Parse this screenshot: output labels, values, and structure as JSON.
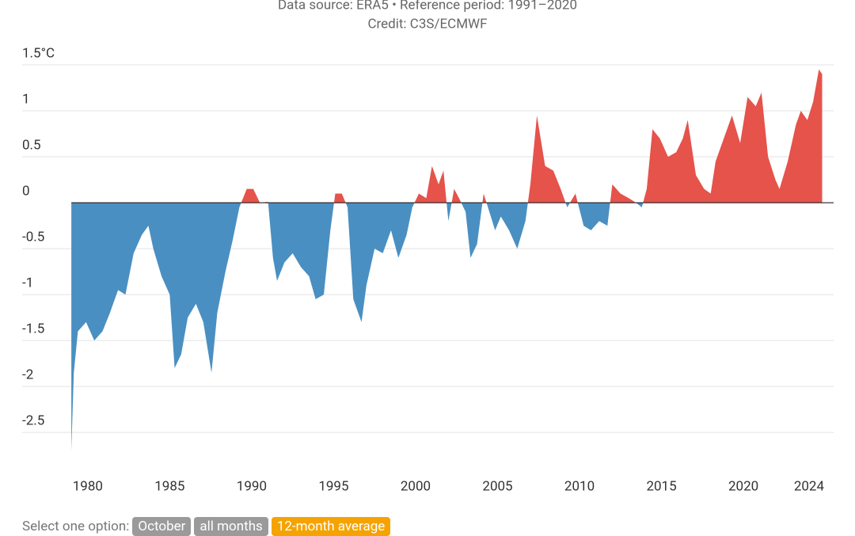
{
  "chart_data": {
    "type": "area",
    "title": "Data source: ERA5 • Reference period: 1991–2020",
    "subtitle": "Credit: C3S/ECMWF",
    "positive_color": "#e5534b",
    "negative_color": "#4a8fc2",
    "grid": true,
    "xlim": [
      1976,
      2025.5
    ],
    "ylim": [
      -2.8,
      1.5
    ],
    "xticks": [
      1980,
      1985,
      1990,
      1995,
      2000,
      2005,
      2010,
      2015,
      2020,
      2024
    ],
    "yticks": [
      {
        "value": 1.5,
        "label": "1.5°C"
      },
      1,
      0.5,
      0,
      -0.5,
      -1,
      -1.5,
      -2,
      -2.5
    ],
    "x": [
      1979.0,
      1979.15,
      1979.4,
      1979.9,
      1980.4,
      1980.9,
      1981.35,
      1981.85,
      1982.3,
      1982.8,
      1983.3,
      1983.7,
      1984.0,
      1984.5,
      1985.0,
      1985.3,
      1985.7,
      1986.1,
      1986.6,
      1987.05,
      1987.55,
      1987.9,
      1988.4,
      1988.85,
      1989.25,
      1989.7,
      1990.1,
      1990.5,
      1991.0,
      1991.3,
      1991.55,
      1992.0,
      1992.5,
      1993.0,
      1993.5,
      1993.9,
      1994.4,
      1994.8,
      1995.1,
      1995.5,
      1995.85,
      1996.2,
      1996.7,
      1997.0,
      1997.5,
      1998.0,
      1998.5,
      1998.95,
      1999.45,
      1999.8,
      2000.2,
      2000.65,
      2001.0,
      2001.4,
      2001.7,
      2002.0,
      2002.35,
      2002.65,
      2003.05,
      2003.35,
      2003.75,
      2004.15,
      2004.5,
      2004.85,
      2005.2,
      2005.7,
      2006.2,
      2006.7,
      2007.0,
      2007.4,
      2007.9,
      2008.4,
      2008.85,
      2009.25,
      2009.75,
      2010.25,
      2010.7,
      2011.2,
      2011.7,
      2012.0,
      2012.5,
      2013.0,
      2013.45,
      2013.8,
      2014.1,
      2014.45,
      2014.9,
      2015.4,
      2015.9,
      2016.3,
      2016.6,
      2017.1,
      2017.6,
      2018.0,
      2018.3,
      2018.8,
      2019.3,
      2019.8,
      2020.25,
      2020.75,
      2021.1,
      2021.5,
      2021.95,
      2022.2,
      2022.7,
      2023.2,
      2023.5,
      2023.9,
      2024.25,
      2024.6,
      2024.8
    ],
    "values": [
      -2.7,
      -1.85,
      -1.4,
      -1.3,
      -1.5,
      -1.4,
      -1.2,
      -0.95,
      -1.0,
      -0.55,
      -0.35,
      -0.25,
      -0.5,
      -0.8,
      -1.0,
      -1.8,
      -1.65,
      -1.25,
      -1.1,
      -1.3,
      -1.85,
      -1.2,
      -0.75,
      -0.4,
      -0.05,
      0.15,
      0.15,
      0.0,
      0.01,
      -0.6,
      -0.85,
      -0.65,
      -0.55,
      -0.7,
      -0.8,
      -1.05,
      -1.0,
      -0.3,
      0.1,
      0.1,
      -0.05,
      -1.05,
      -1.3,
      -0.9,
      -0.5,
      -0.55,
      -0.3,
      -0.6,
      -0.35,
      -0.05,
      0.1,
      0.05,
      0.4,
      0.2,
      0.35,
      -0.2,
      0.15,
      0.05,
      -0.1,
      -0.6,
      -0.45,
      0.1,
      -0.1,
      -0.3,
      -0.15,
      -0.3,
      -0.5,
      -0.2,
      0.2,
      0.95,
      0.4,
      0.35,
      0.15,
      -0.05,
      0.1,
      -0.25,
      -0.3,
      -0.2,
      -0.25,
      0.2,
      0.1,
      0.05,
      0.0,
      -0.05,
      0.15,
      0.8,
      0.7,
      0.5,
      0.55,
      0.7,
      0.9,
      0.3,
      0.15,
      0.1,
      0.45,
      0.7,
      0.95,
      0.65,
      1.15,
      1.05,
      1.2,
      0.5,
      0.25,
      0.15,
      0.45,
      0.85,
      1.0,
      0.9,
      1.1,
      1.45,
      1.4
    ]
  },
  "controls": {
    "prompt": "Select one option:",
    "options": [
      "October",
      "all months",
      "12-month average"
    ],
    "selected": 2
  }
}
